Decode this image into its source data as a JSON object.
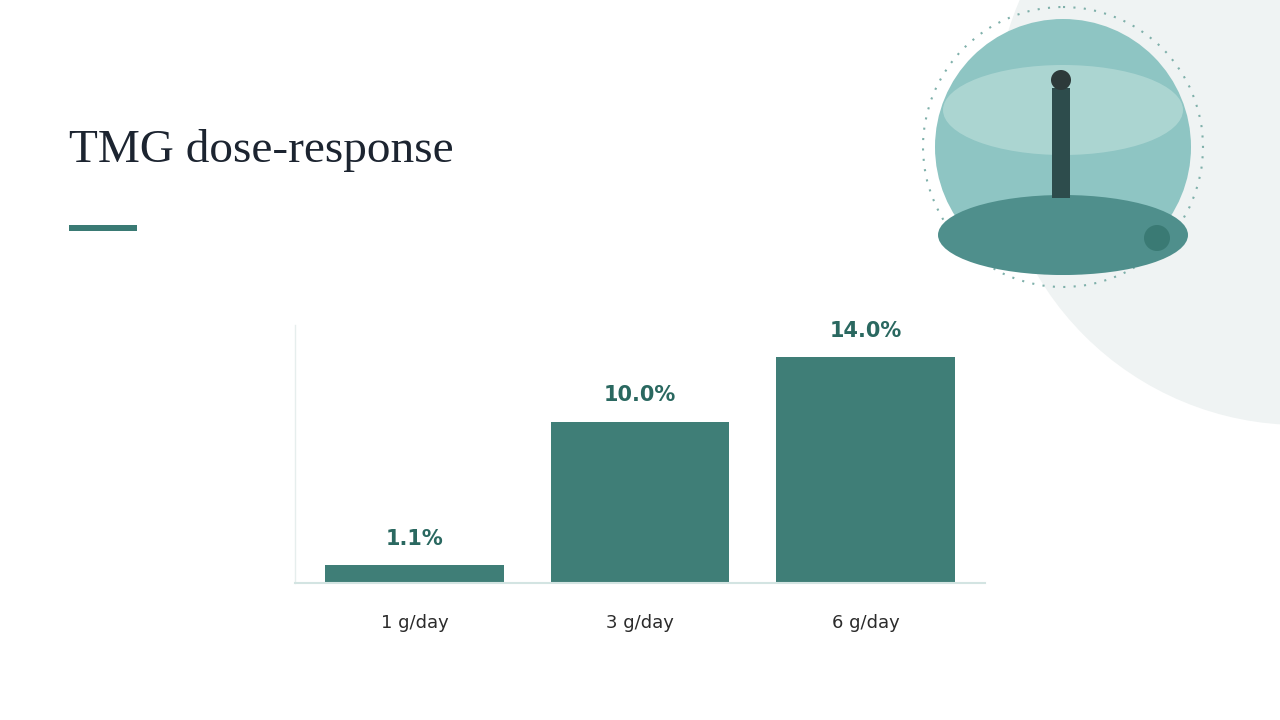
{
  "chart_data": {
    "type": "bar",
    "title": "TMG dose-response",
    "categories": [
      "1 g/day",
      "3 g/day",
      "6 g/day"
    ],
    "values": [
      1.1,
      10.0,
      14.0
    ],
    "value_labels": [
      "1.1%",
      "10.0%",
      "14.0%"
    ],
    "data_labels": true,
    "color": "#3f7e77",
    "ylim": [
      0,
      16
    ],
    "tick_labels": "x"
  }
}
